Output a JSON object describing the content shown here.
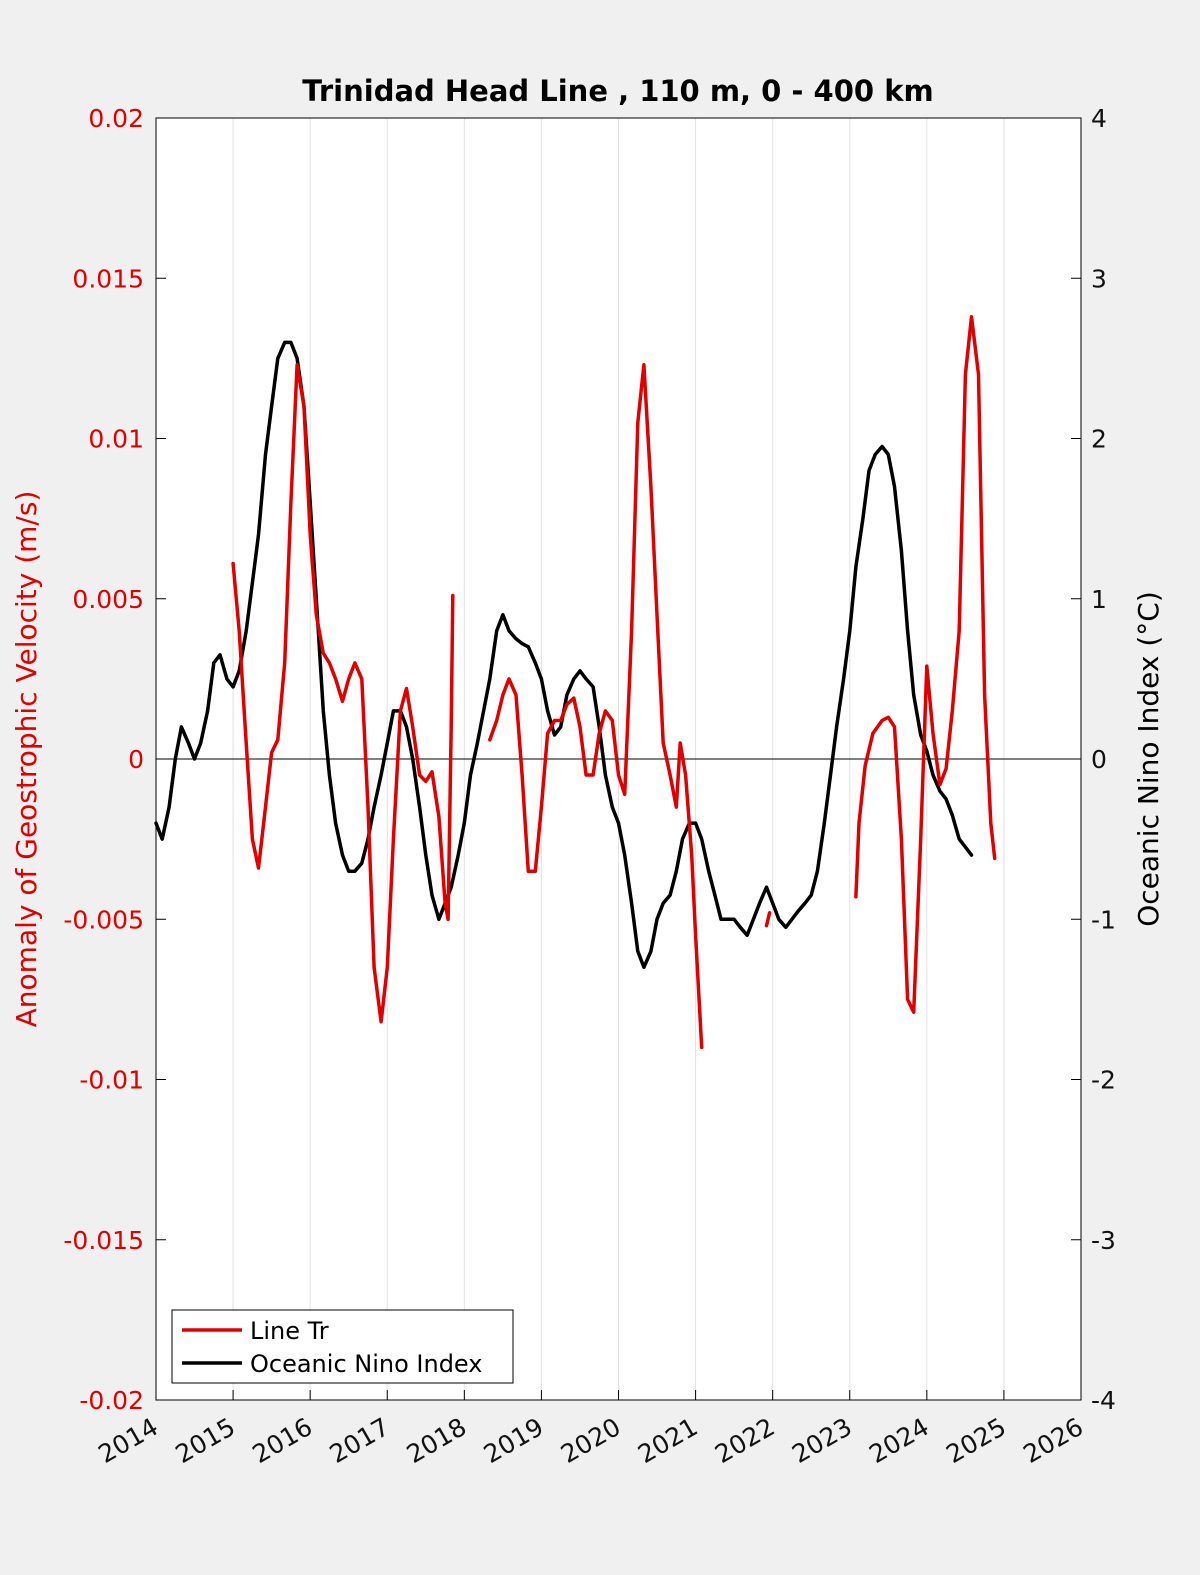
{
  "chart_data": {
    "type": "line",
    "title": "Trinidad Head Line , 110 m, 0 - 400 km",
    "ylabel_left": "Anomaly of Geostrophic Velocity (m/s)",
    "ylabel_right": "Oceanic Nino Index (°C)",
    "xlim": [
      2014,
      2026
    ],
    "ylim_left": [
      -0.02,
      0.02
    ],
    "ylim_right": [
      -4,
      4
    ],
    "x_ticks": [
      "2014",
      "2015",
      "2016",
      "2017",
      "2018",
      "2019",
      "2020",
      "2021",
      "2022",
      "2023",
      "2024",
      "2025",
      "2026"
    ],
    "y_left_ticks": [
      "0.02",
      "0.015",
      "0.01",
      "0.005",
      "0",
      "-0.005",
      "-0.01",
      "-0.015",
      "-0.02"
    ],
    "y_right_ticks": [
      "4",
      "3",
      "2",
      "1",
      "0",
      "-1",
      "-2",
      "-3",
      "-4"
    ],
    "grid": "vertical",
    "legend_position": "bottom-left",
    "colors": {
      "line_tr": "#e00000",
      "oni": "#000000",
      "left_axis": "#e00000"
    },
    "series": [
      {
        "name": "Line Tr",
        "axis": "left",
        "segments": [
          [
            [
              2015.0,
              0.0061
            ],
            [
              2015.08,
              0.004
            ],
            [
              2015.17,
              0.0005
            ],
            [
              2015.25,
              -0.0025
            ],
            [
              2015.33,
              -0.0034
            ],
            [
              2015.42,
              -0.0015
            ],
            [
              2015.5,
              0.0002
            ],
            [
              2015.58,
              0.0006
            ],
            [
              2015.67,
              0.003
            ],
            [
              2015.75,
              0.008
            ],
            [
              2015.83,
              0.0123
            ],
            [
              2015.92,
              0.011
            ],
            [
              2016.0,
              0.007
            ],
            [
              2016.08,
              0.0045
            ],
            [
              2016.17,
              0.0033
            ],
            [
              2016.25,
              0.003
            ],
            [
              2016.33,
              0.0025
            ],
            [
              2016.42,
              0.0018
            ],
            [
              2016.5,
              0.0025
            ],
            [
              2016.58,
              0.003
            ],
            [
              2016.67,
              0.0025
            ],
            [
              2016.75,
              -0.0015
            ],
            [
              2016.83,
              -0.0065
            ],
            [
              2016.92,
              -0.0082
            ],
            [
              2017.0,
              -0.0065
            ],
            [
              2017.08,
              -0.0025
            ],
            [
              2017.17,
              0.0015
            ],
            [
              2017.25,
              0.0022
            ],
            [
              2017.33,
              0.001
            ],
            [
              2017.42,
              -0.0005
            ],
            [
              2017.5,
              -0.0007
            ],
            [
              2017.58,
              -0.0004
            ],
            [
              2017.67,
              -0.0018
            ],
            [
              2017.75,
              -0.0045
            ],
            [
              2017.79,
              -0.005
            ],
            [
              2017.83,
              0.001
            ],
            [
              2017.85,
              0.0051
            ]
          ],
          [
            [
              2018.33,
              0.0006
            ],
            [
              2018.42,
              0.0012
            ],
            [
              2018.5,
              0.002
            ],
            [
              2018.58,
              0.0025
            ],
            [
              2018.67,
              0.002
            ],
            [
              2018.75,
              -0.0005
            ],
            [
              2018.83,
              -0.0035
            ],
            [
              2018.92,
              -0.0035
            ],
            [
              2019.0,
              -0.0015
            ],
            [
              2019.08,
              0.0008
            ],
            [
              2019.17,
              0.0012
            ],
            [
              2019.25,
              0.0012
            ],
            [
              2019.33,
              0.0017
            ],
            [
              2019.42,
              0.0019
            ],
            [
              2019.5,
              0.001
            ],
            [
              2019.58,
              -0.0005
            ],
            [
              2019.67,
              -0.0005
            ],
            [
              2019.75,
              0.0008
            ],
            [
              2019.83,
              0.0015
            ],
            [
              2019.92,
              0.0012
            ],
            [
              2020.0,
              -0.0005
            ],
            [
              2020.08,
              -0.0011
            ],
            [
              2020.17,
              0.004
            ],
            [
              2020.25,
              0.0105
            ],
            [
              2020.33,
              0.0123
            ],
            [
              2020.42,
              0.0085
            ],
            [
              2020.5,
              0.0045
            ],
            [
              2020.58,
              0.0005
            ],
            [
              2020.67,
              -0.0005
            ],
            [
              2020.75,
              -0.0015
            ],
            [
              2020.8,
              0.0005
            ],
            [
              2020.87,
              -0.0005
            ],
            [
              2020.95,
              -0.003
            ],
            [
              2021.0,
              -0.0055
            ],
            [
              2021.08,
              -0.009
            ]
          ],
          [
            [
              2021.92,
              -0.0052
            ],
            [
              2021.96,
              -0.0048
            ]
          ],
          [
            [
              2023.08,
              -0.0043
            ],
            [
              2023.12,
              -0.002
            ],
            [
              2023.2,
              -0.0002
            ],
            [
              2023.3,
              0.0008
            ],
            [
              2023.42,
              0.0012
            ],
            [
              2023.5,
              0.0013
            ],
            [
              2023.58,
              0.001
            ],
            [
              2023.67,
              -0.0025
            ],
            [
              2023.75,
              -0.0075
            ],
            [
              2023.83,
              -0.0079
            ],
            [
              2023.92,
              -0.0025
            ],
            [
              2024.0,
              0.0029
            ],
            [
              2024.08,
              0.0008
            ],
            [
              2024.17,
              -0.0008
            ],
            [
              2024.25,
              -0.0003
            ],
            [
              2024.33,
              0.0015
            ],
            [
              2024.42,
              0.004
            ],
            [
              2024.5,
              0.012
            ],
            [
              2024.58,
              0.0138
            ],
            [
              2024.67,
              0.012
            ],
            [
              2024.75,
              0.002
            ],
            [
              2024.83,
              -0.002
            ],
            [
              2024.88,
              -0.0031
            ]
          ]
        ]
      },
      {
        "name": "Oceanic Nino Index",
        "axis": "right",
        "segments": [
          [
            [
              2014.0,
              -0.4
            ],
            [
              2014.08,
              -0.5
            ],
            [
              2014.17,
              -0.3
            ],
            [
              2014.25,
              0.0
            ],
            [
              2014.33,
              0.2
            ],
            [
              2014.42,
              0.1
            ],
            [
              2014.5,
              0.0
            ],
            [
              2014.58,
              0.1
            ],
            [
              2014.67,
              0.3
            ],
            [
              2014.75,
              0.6
            ],
            [
              2014.83,
              0.65
            ],
            [
              2014.92,
              0.5
            ],
            [
              2015.0,
              0.45
            ],
            [
              2015.08,
              0.55
            ],
            [
              2015.17,
              0.8
            ],
            [
              2015.25,
              1.1
            ],
            [
              2015.33,
              1.4
            ],
            [
              2015.42,
              1.9
            ],
            [
              2015.5,
              2.2
            ],
            [
              2015.58,
              2.5
            ],
            [
              2015.67,
              2.6
            ],
            [
              2015.75,
              2.6
            ],
            [
              2015.83,
              2.5
            ],
            [
              2015.92,
              2.2
            ],
            [
              2016.0,
              1.6
            ],
            [
              2016.08,
              1.0
            ],
            [
              2016.17,
              0.3
            ],
            [
              2016.25,
              -0.1
            ],
            [
              2016.33,
              -0.4
            ],
            [
              2016.42,
              -0.6
            ],
            [
              2016.5,
              -0.7
            ],
            [
              2016.58,
              -0.7
            ],
            [
              2016.67,
              -0.65
            ],
            [
              2016.75,
              -0.5
            ],
            [
              2016.83,
              -0.3
            ],
            [
              2016.92,
              -0.1
            ],
            [
              2017.0,
              0.1
            ],
            [
              2017.08,
              0.3
            ],
            [
              2017.17,
              0.3
            ],
            [
              2017.25,
              0.2
            ],
            [
              2017.33,
              0.0
            ],
            [
              2017.42,
              -0.3
            ],
            [
              2017.5,
              -0.6
            ],
            [
              2017.58,
              -0.85
            ],
            [
              2017.67,
              -1.0
            ],
            [
              2017.75,
              -0.9
            ],
            [
              2017.83,
              -0.8
            ],
            [
              2017.92,
              -0.6
            ],
            [
              2018.0,
              -0.4
            ],
            [
              2018.08,
              -0.1
            ],
            [
              2018.17,
              0.1
            ],
            [
              2018.25,
              0.3
            ],
            [
              2018.33,
              0.5
            ],
            [
              2018.42,
              0.8
            ],
            [
              2018.5,
              0.9
            ],
            [
              2018.58,
              0.8
            ],
            [
              2018.67,
              0.75
            ],
            [
              2018.75,
              0.72
            ],
            [
              2018.83,
              0.7
            ],
            [
              2018.92,
              0.6
            ],
            [
              2019.0,
              0.5
            ],
            [
              2019.08,
              0.3
            ],
            [
              2019.17,
              0.15
            ],
            [
              2019.25,
              0.2
            ],
            [
              2019.33,
              0.4
            ],
            [
              2019.42,
              0.5
            ],
            [
              2019.5,
              0.55
            ],
            [
              2019.58,
              0.5
            ],
            [
              2019.67,
              0.45
            ],
            [
              2019.75,
              0.2
            ],
            [
              2019.83,
              -0.1
            ],
            [
              2019.92,
              -0.3
            ],
            [
              2020.0,
              -0.4
            ],
            [
              2020.08,
              -0.6
            ],
            [
              2020.17,
              -0.9
            ],
            [
              2020.25,
              -1.2
            ],
            [
              2020.33,
              -1.3
            ],
            [
              2020.42,
              -1.2
            ],
            [
              2020.5,
              -1.0
            ],
            [
              2020.58,
              -0.9
            ],
            [
              2020.67,
              -0.85
            ],
            [
              2020.75,
              -0.7
            ],
            [
              2020.83,
              -0.5
            ],
            [
              2020.92,
              -0.4
            ],
            [
              2021.0,
              -0.4
            ],
            [
              2021.08,
              -0.5
            ],
            [
              2021.17,
              -0.7
            ],
            [
              2021.25,
              -0.85
            ],
            [
              2021.33,
              -1.0
            ],
            [
              2021.42,
              -1.0
            ],
            [
              2021.5,
              -1.0
            ],
            [
              2021.58,
              -1.05
            ],
            [
              2021.67,
              -1.1
            ],
            [
              2021.75,
              -1.0
            ],
            [
              2021.83,
              -0.9
            ],
            [
              2021.92,
              -0.8
            ],
            [
              2022.0,
              -0.9
            ],
            [
              2022.08,
              -1.0
            ],
            [
              2022.17,
              -1.05
            ],
            [
              2022.25,
              -1.0
            ],
            [
              2022.33,
              -0.95
            ],
            [
              2022.42,
              -0.9
            ],
            [
              2022.5,
              -0.85
            ],
            [
              2022.58,
              -0.7
            ],
            [
              2022.67,
              -0.4
            ],
            [
              2022.75,
              -0.1
            ],
            [
              2022.83,
              0.2
            ],
            [
              2022.92,
              0.5
            ],
            [
              2023.0,
              0.8
            ],
            [
              2023.08,
              1.2
            ],
            [
              2023.17,
              1.5
            ],
            [
              2023.25,
              1.8
            ],
            [
              2023.33,
              1.9
            ],
            [
              2023.42,
              1.95
            ],
            [
              2023.5,
              1.9
            ],
            [
              2023.58,
              1.7
            ],
            [
              2023.67,
              1.3
            ],
            [
              2023.75,
              0.8
            ],
            [
              2023.83,
              0.4
            ],
            [
              2023.92,
              0.15
            ],
            [
              2024.0,
              0.05
            ],
            [
              2024.08,
              -0.1
            ],
            [
              2024.17,
              -0.2
            ],
            [
              2024.25,
              -0.25
            ],
            [
              2024.33,
              -0.35
            ],
            [
              2024.42,
              -0.5
            ],
            [
              2024.5,
              -0.55
            ],
            [
              2024.58,
              -0.6
            ]
          ]
        ]
      }
    ]
  },
  "legend": {
    "items": [
      {
        "label": "Line Tr",
        "color": "#e00000"
      },
      {
        "label": "Oceanic Nino Index",
        "color": "#000000"
      }
    ]
  }
}
